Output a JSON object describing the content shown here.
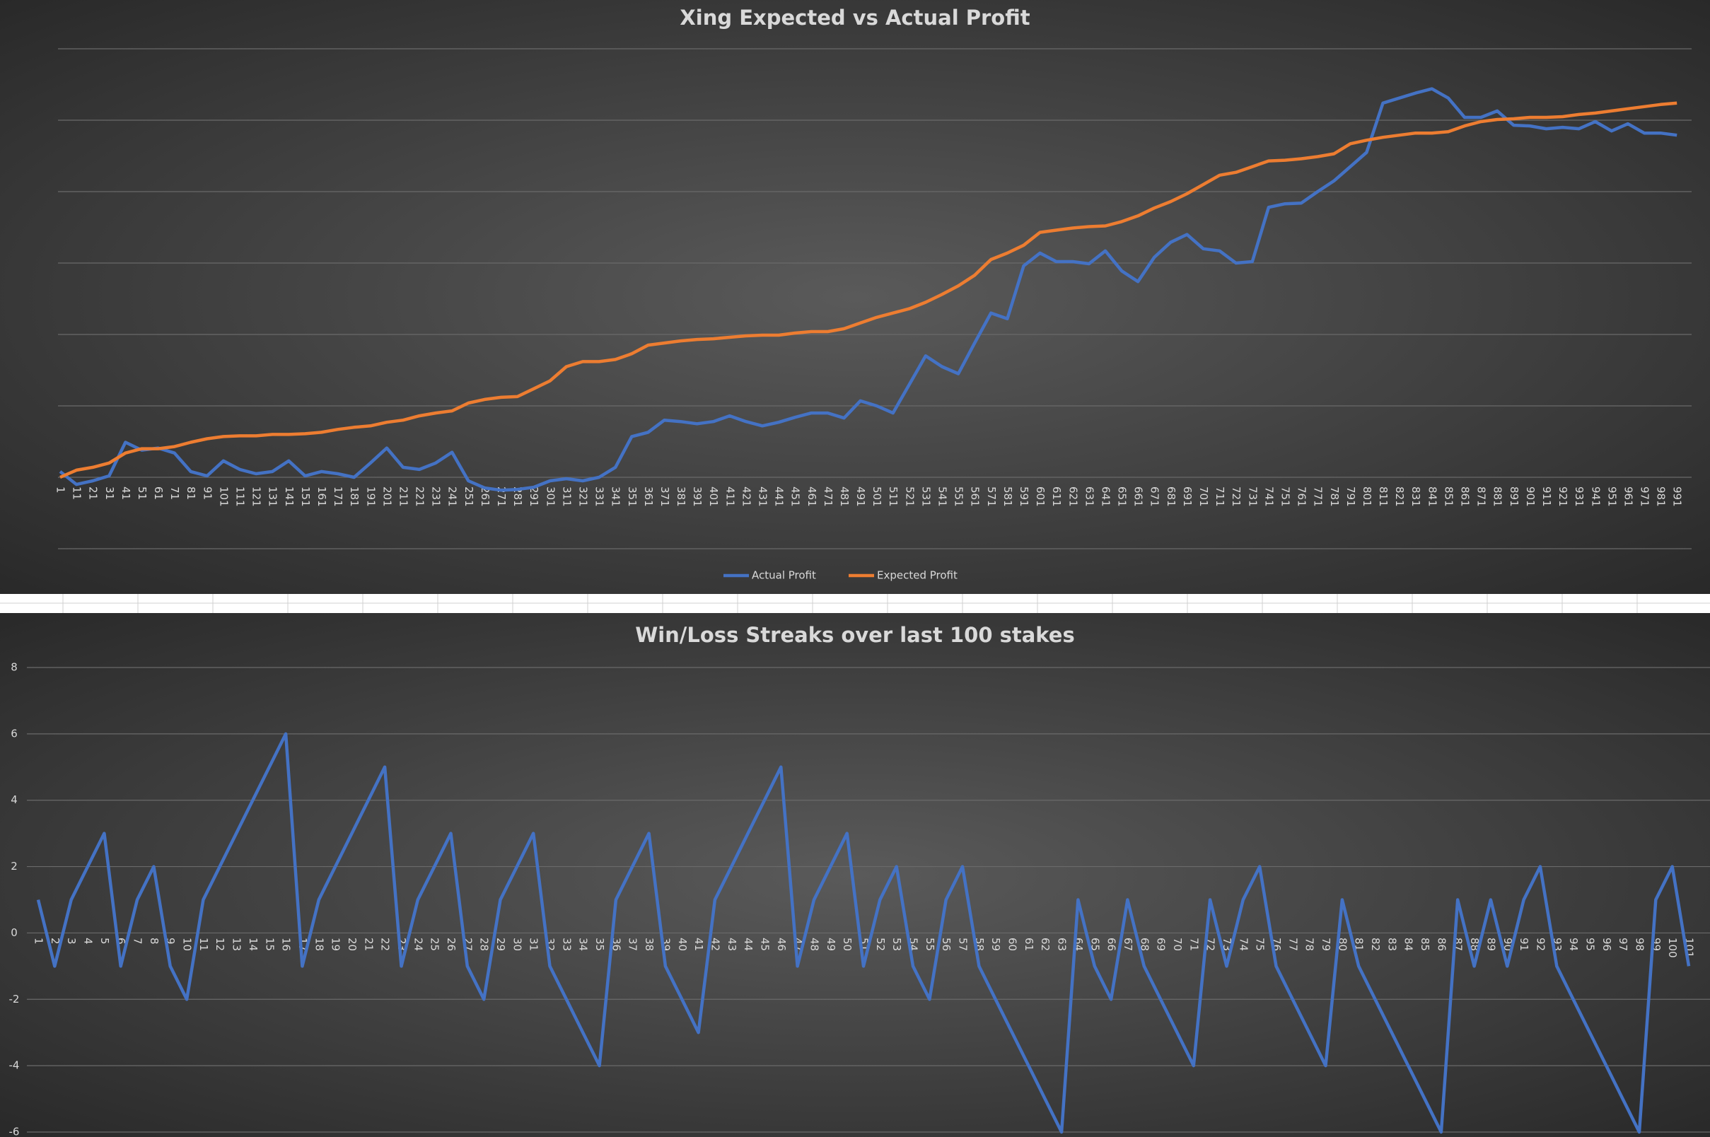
{
  "chart_data": [
    {
      "type": "line",
      "title": "Xing Expected vs Actual Profit",
      "x": [
        1,
        11,
        21,
        31,
        41,
        51,
        61,
        71,
        81,
        91,
        101,
        111,
        121,
        131,
        141,
        151,
        161,
        171,
        181,
        191,
        201,
        211,
        221,
        231,
        241,
        251,
        261,
        271,
        281,
        291,
        301,
        311,
        321,
        331,
        341,
        351,
        361,
        371,
        381,
        391,
        401,
        411,
        421,
        431,
        441,
        451,
        461,
        471,
        481,
        491,
        501,
        511,
        521,
        531,
        541,
        551,
        561,
        571,
        581,
        591,
        601,
        611,
        621,
        631,
        641,
        651,
        661,
        671,
        681,
        691,
        701,
        711,
        721,
        731,
        741,
        751,
        761,
        771,
        781,
        791,
        801,
        811,
        821,
        831,
        841,
        851,
        861,
        871,
        881,
        891,
        901,
        911,
        921,
        931,
        941,
        951,
        961,
        971,
        981,
        991
      ],
      "xlim": [
        1,
        1000
      ],
      "ylim": [
        -1,
        6
      ],
      "yticks": [
        -1,
        0,
        1,
        2,
        3,
        4,
        5,
        6
      ],
      "ytick_labels": false,
      "grid": true,
      "legend": "bottom",
      "series": [
        {
          "name": "Actual Profit",
          "color": "#4472c4",
          "values": [
            0.08,
            -0.1,
            -0.05,
            0.02,
            0.49,
            0.38,
            0.41,
            0.34,
            0.08,
            0.02,
            0.23,
            0.11,
            0.05,
            0.08,
            0.23,
            0.02,
            0.08,
            0.05,
            0,
            0.2,
            0.41,
            0.14,
            0.11,
            0.2,
            0.35,
            -0.05,
            -0.15,
            -0.18,
            -0.17,
            -0.14,
            -0.05,
            -0.02,
            -0.05,
            0,
            0.14,
            0.57,
            0.63,
            0.8,
            0.78,
            0.75,
            0.78,
            0.86,
            0.78,
            0.72,
            0.77,
            0.84,
            0.9,
            0.9,
            0.83,
            1.07,
            1.0,
            0.9,
            1.3,
            1.7,
            1.55,
            1.45,
            1.88,
            2.3,
            2.22,
            2.96,
            3.14,
            3.02,
            3.02,
            2.99,
            3.17,
            2.89,
            2.74,
            3.08,
            3.29,
            3.4,
            3.2,
            3.17,
            3.0,
            3.02,
            3.78,
            3.83,
            3.84,
            4.0,
            4.15,
            4.35,
            4.55,
            5.24,
            5.31,
            5.38,
            5.44,
            5.31,
            5.04,
            5.04,
            5.13,
            4.93,
            4.92,
            4.88,
            4.9,
            4.88,
            4.98,
            4.85,
            4.95,
            4.82,
            4.82,
            4.79
          ]
        },
        {
          "name": "Expected Profit",
          "color": "#ed7d31",
          "values": [
            0,
            0.1,
            0.14,
            0.2,
            0.34,
            0.4,
            0.4,
            0.43,
            0.49,
            0.54,
            0.57,
            0.58,
            0.58,
            0.6,
            0.6,
            0.61,
            0.63,
            0.67,
            0.7,
            0.72,
            0.77,
            0.8,
            0.86,
            0.9,
            0.93,
            1.04,
            1.09,
            1.12,
            1.13,
            1.24,
            1.35,
            1.55,
            1.62,
            1.62,
            1.65,
            1.73,
            1.85,
            1.88,
            1.91,
            1.93,
            1.94,
            1.96,
            1.98,
            1.99,
            1.99,
            2.02,
            2.04,
            2.04,
            2.08,
            2.16,
            2.24,
            2.3,
            2.36,
            2.45,
            2.56,
            2.68,
            2.83,
            3.05,
            3.14,
            3.25,
            3.43,
            3.46,
            3.49,
            3.51,
            3.52,
            3.58,
            3.66,
            3.77,
            3.86,
            3.97,
            4.1,
            4.23,
            4.27,
            4.35,
            4.43,
            4.44,
            4.46,
            4.49,
            4.53,
            4.67,
            4.72,
            4.76,
            4.79,
            4.82,
            4.82,
            4.84,
            4.92,
            4.98,
            5.01,
            5.02,
            5.04,
            5.04,
            5.05,
            5.08,
            5.1,
            5.13,
            5.16,
            5.19,
            5.22,
            5.24
          ]
        }
      ]
    },
    {
      "type": "line",
      "title": "Win/Loss Streaks over last 100 stakes",
      "categories": [
        1,
        2,
        3,
        4,
        5,
        6,
        7,
        8,
        9,
        10,
        11,
        12,
        13,
        14,
        15,
        16,
        17,
        18,
        19,
        20,
        21,
        22,
        23,
        24,
        25,
        26,
        27,
        28,
        29,
        30,
        31,
        32,
        33,
        34,
        35,
        36,
        37,
        38,
        39,
        40,
        41,
        42,
        43,
        44,
        45,
        46,
        47,
        48,
        49,
        50,
        51,
        52,
        53,
        54,
        55,
        56,
        57,
        58,
        59,
        60,
        61,
        62,
        63,
        64,
        65,
        66,
        67,
        68,
        69,
        70,
        71,
        72,
        73,
        74,
        75,
        76,
        77,
        78,
        79,
        80,
        81,
        82,
        83,
        84,
        85,
        86,
        87,
        88,
        89,
        90,
        91,
        92,
        93,
        94,
        95,
        96,
        97,
        98,
        99,
        100,
        101
      ],
      "ylim": [
        -6,
        8
      ],
      "yticks": [
        -6,
        -4,
        -2,
        0,
        2,
        4,
        6,
        8
      ],
      "ytick_labels": true,
      "grid": true,
      "series": [
        {
          "color": "#4472c4",
          "values": [
            1,
            -1,
            1,
            2,
            3,
            -1,
            1,
            2,
            -1,
            -2,
            1,
            2,
            3,
            4,
            5,
            6,
            -1,
            1,
            2,
            3,
            4,
            5,
            -1,
            1,
            2,
            3,
            -1,
            -2,
            1,
            2,
            3,
            -1,
            -2,
            -3,
            -4,
            1,
            2,
            3,
            -1,
            -2,
            -3,
            1,
            2,
            3,
            4,
            5,
            -1,
            1,
            2,
            3,
            -1,
            1,
            2,
            -1,
            -2,
            1,
            2,
            -1,
            -2,
            -3,
            -4,
            -5,
            -6,
            1,
            -1,
            -2,
            1,
            -1,
            -2,
            -3,
            -4,
            1,
            -1,
            1,
            2,
            -1,
            -2,
            -3,
            -4,
            1,
            -1,
            -2,
            -3,
            -4,
            -5,
            -6,
            1,
            -1,
            1,
            -1,
            1,
            2,
            -1,
            -2,
            -3,
            -4,
            -5,
            -6,
            1,
            2,
            -1
          ]
        }
      ]
    }
  ]
}
